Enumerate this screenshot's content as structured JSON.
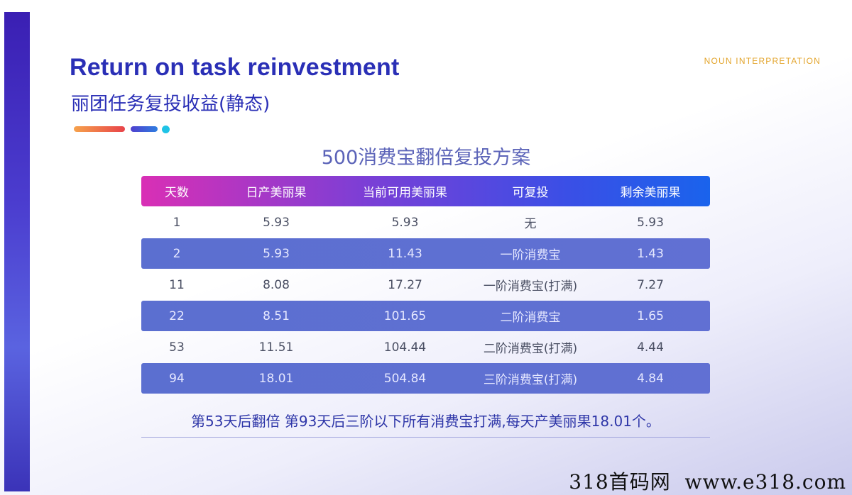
{
  "header": {
    "title_en": "Return on task reinvestment",
    "title_cn": "丽团任务复投收益(静态)",
    "noun_label": "NOUN INTERPRETATION"
  },
  "table": {
    "title": "500消费宝翻倍复投方案",
    "columns": [
      "天数",
      "日产美丽果",
      "当前可用美丽果",
      "可复投",
      "剩余美丽果"
    ],
    "rows": [
      [
        "1",
        "5.93",
        "5.93",
        "无",
        "5.93"
      ],
      [
        "2",
        "5.93",
        "11.43",
        "一阶消费宝",
        "1.43"
      ],
      [
        "11",
        "8.08",
        "17.27",
        "一阶消费宝(打满)",
        "7.27"
      ],
      [
        "22",
        "8.51",
        "101.65",
        "二阶消费宝",
        "1.65"
      ],
      [
        "53",
        "11.51",
        "104.44",
        "二阶消费宝(打满)",
        "4.44"
      ],
      [
        "94",
        "18.01",
        "504.84",
        "三阶消费宝(打满)",
        "4.84"
      ]
    ]
  },
  "footnote": "第53天后翻倍  第93天后三阶以下所有消费宝打满,每天产美丽果18.01个。",
  "watermark": "318首码网  www.e318.com",
  "colors": {
    "title": "#2a2fb6",
    "accent_orange": "#e3a52d",
    "row_band": "#5b6fd0",
    "header_gradient_start": "#d92fb5",
    "header_gradient_end": "#1a63ec"
  }
}
